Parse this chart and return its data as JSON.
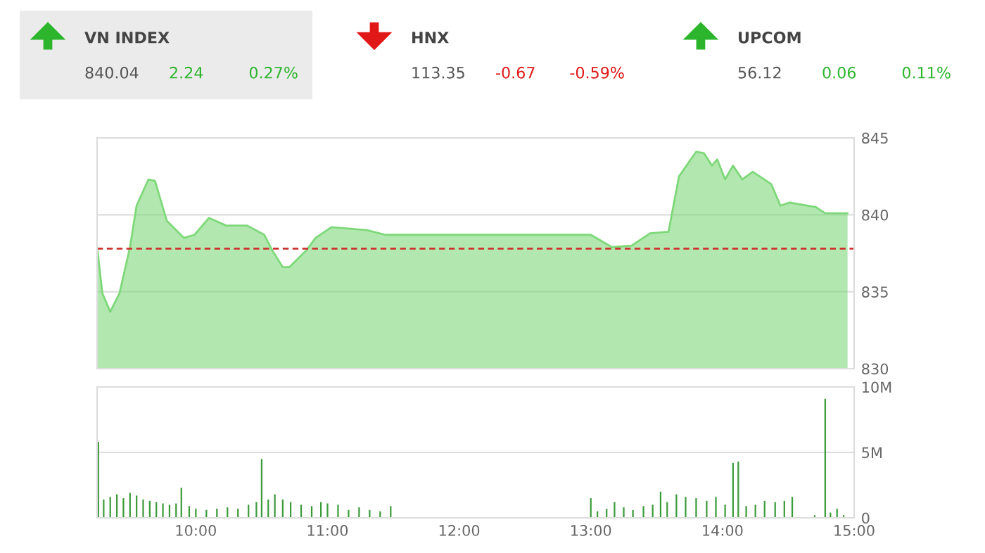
{
  "chart_data": [
    {
      "type": "other",
      "categories": [
        "VN INDEX",
        "HNX",
        "UPCOM"
      ],
      "colors": [
        "#2db52d",
        "#e01818",
        "#2db52d"
      ],
      "series": [
        {
          "values": [
            840.04,
            113.35,
            56.12
          ],
          "value_labels": [
            "840.04",
            "113.35",
            "56.12"
          ]
        },
        {
          "values": [
            2.24,
            -0.67,
            0.06
          ],
          "value_labels": [
            "2.24",
            "-0.67",
            "0.06"
          ]
        },
        {
          "values": [
            0.27,
            -0.59,
            0.11
          ],
          "value_labels": [
            "0.27%",
            "-0.59%",
            "0.11%"
          ]
        }
      ]
    },
    {
      "type": "area",
      "xlim": [
        9.25,
        15.0
      ],
      "ylim": [
        830,
        845
      ],
      "yticks": [
        830,
        835,
        840,
        845
      ],
      "grid": "y",
      "tick_labels": "y",
      "ref_lines": [
        {
          "axis": "y",
          "value": 837.8,
          "color": "#d03030",
          "line_style": "dashed"
        }
      ],
      "series": [
        {
          "color": "#7ed87a",
          "x": [
            9.25,
            9.29,
            9.35,
            9.42,
            9.5,
            9.55,
            9.64,
            9.69,
            9.78,
            9.91,
            9.99,
            10.1,
            10.23,
            10.39,
            10.52,
            10.58,
            10.66,
            10.71,
            10.84,
            10.91,
            11.03,
            11.3,
            11.44,
            11.5,
            13.0,
            13.16,
            13.31,
            13.45,
            13.59,
            13.67,
            13.8,
            13.86,
            13.92,
            13.96,
            14.02,
            14.08,
            14.15,
            14.23,
            14.37,
            14.44,
            14.51,
            14.71,
            14.78,
            14.95
          ],
          "values": [
            837.9,
            834.9,
            833.7,
            834.9,
            837.9,
            840.6,
            842.3,
            842.2,
            839.6,
            838.5,
            838.7,
            839.8,
            839.3,
            839.3,
            838.7,
            837.7,
            836.6,
            836.6,
            837.7,
            838.5,
            839.2,
            839.0,
            838.7,
            838.7,
            838.7,
            837.9,
            838.0,
            838.8,
            838.9,
            842.5,
            844.1,
            844.0,
            843.2,
            843.6,
            842.3,
            843.2,
            842.3,
            842.8,
            842.0,
            840.6,
            840.8,
            840.5,
            840.1,
            840.1
          ]
        }
      ]
    },
    {
      "type": "bar",
      "xlim": [
        9.25,
        15.0
      ],
      "ylim": [
        0,
        10
      ],
      "grid": "y",
      "xticks": [
        {
          "value": 10,
          "label": "10:00"
        },
        {
          "value": 11,
          "label": "11:00"
        },
        {
          "value": 12,
          "label": "12:00"
        },
        {
          "value": 13,
          "label": "13:00"
        },
        {
          "value": 14,
          "label": "14:00"
        },
        {
          "value": 15,
          "label": "15:00"
        }
      ],
      "yticks": [
        0,
        {
          "value": 5,
          "label": "5M"
        },
        {
          "value": 10,
          "label": "10M"
        }
      ],
      "series": [
        {
          "color": "#3c9c3c",
          "x": [
            9.26,
            9.3,
            9.35,
            9.4,
            9.45,
            9.5,
            9.55,
            9.6,
            9.65,
            9.7,
            9.75,
            9.8,
            9.85,
            9.89,
            9.95,
            10.0,
            10.08,
            10.16,
            10.24,
            10.32,
            10.4,
            10.46,
            10.5,
            10.55,
            10.6,
            10.66,
            10.72,
            10.8,
            10.88,
            10.95,
            11.0,
            11.08,
            11.16,
            11.24,
            11.32,
            11.4,
            11.48,
            13.0,
            13.05,
            13.12,
            13.18,
            13.25,
            13.32,
            13.4,
            13.47,
            13.53,
            13.58,
            13.65,
            13.72,
            13.8,
            13.88,
            13.95,
            14.02,
            14.08,
            14.12,
            14.18,
            14.25,
            14.32,
            14.4,
            14.47,
            14.53,
            14.7,
            14.78,
            14.82,
            14.87,
            14.92
          ],
          "values": [
            5.8,
            1.4,
            1.6,
            1.8,
            1.5,
            1.9,
            1.7,
            1.4,
            1.3,
            1.2,
            1.1,
            1.0,
            1.1,
            2.3,
            0.9,
            0.7,
            0.6,
            0.7,
            0.8,
            0.7,
            1.0,
            1.2,
            4.5,
            1.4,
            1.8,
            1.4,
            1.2,
            1.0,
            0.9,
            1.2,
            1.1,
            1.0,
            0.6,
            0.8,
            0.6,
            0.5,
            0.9,
            1.5,
            0.5,
            0.7,
            1.2,
            0.8,
            0.6,
            0.9,
            1.0,
            2.0,
            1.2,
            1.8,
            1.6,
            1.5,
            1.3,
            1.6,
            1.0,
            4.2,
            4.3,
            0.9,
            1.0,
            1.3,
            1.2,
            1.3,
            1.6,
            0.2,
            9.1,
            0.4,
            0.7,
            0.2
          ]
        }
      ]
    }
  ]
}
